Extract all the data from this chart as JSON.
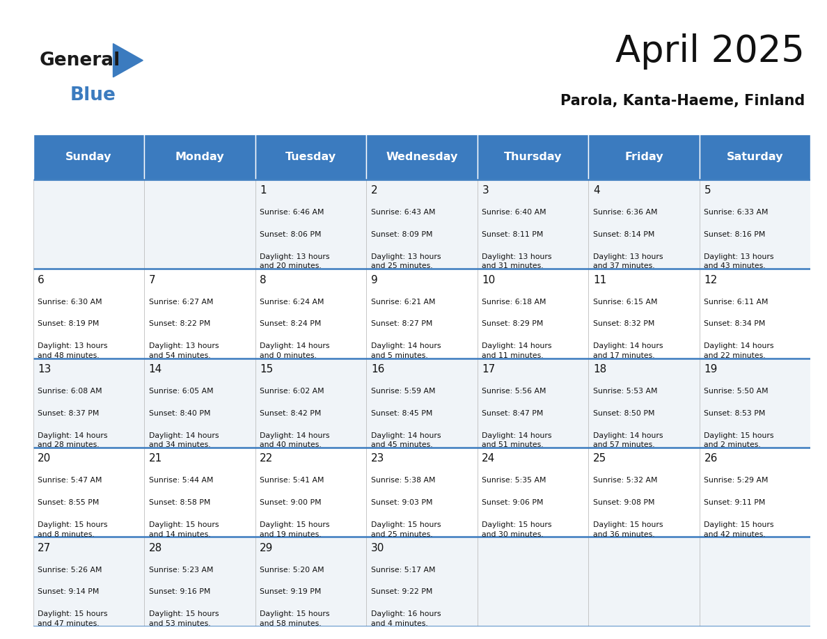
{
  "title": "April 2025",
  "subtitle": "Parola, Kanta-Haeme, Finland",
  "header_color": "#3b7bbf",
  "header_text_color": "#ffffff",
  "cell_bg_even": "#f0f4f8",
  "cell_bg_odd": "#ffffff",
  "day_headers": [
    "Sunday",
    "Monday",
    "Tuesday",
    "Wednesday",
    "Thursday",
    "Friday",
    "Saturday"
  ],
  "days": [
    {
      "day": "",
      "sunrise": "",
      "sunset": "",
      "daylight": ""
    },
    {
      "day": "",
      "sunrise": "",
      "sunset": "",
      "daylight": ""
    },
    {
      "day": "1",
      "sunrise": "Sunrise: 6:46 AM",
      "sunset": "Sunset: 8:06 PM",
      "daylight": "Daylight: 13 hours\nand 20 minutes."
    },
    {
      "day": "2",
      "sunrise": "Sunrise: 6:43 AM",
      "sunset": "Sunset: 8:09 PM",
      "daylight": "Daylight: 13 hours\nand 25 minutes."
    },
    {
      "day": "3",
      "sunrise": "Sunrise: 6:40 AM",
      "sunset": "Sunset: 8:11 PM",
      "daylight": "Daylight: 13 hours\nand 31 minutes."
    },
    {
      "day": "4",
      "sunrise": "Sunrise: 6:36 AM",
      "sunset": "Sunset: 8:14 PM",
      "daylight": "Daylight: 13 hours\nand 37 minutes."
    },
    {
      "day": "5",
      "sunrise": "Sunrise: 6:33 AM",
      "sunset": "Sunset: 8:16 PM",
      "daylight": "Daylight: 13 hours\nand 43 minutes."
    },
    {
      "day": "6",
      "sunrise": "Sunrise: 6:30 AM",
      "sunset": "Sunset: 8:19 PM",
      "daylight": "Daylight: 13 hours\nand 48 minutes."
    },
    {
      "day": "7",
      "sunrise": "Sunrise: 6:27 AM",
      "sunset": "Sunset: 8:22 PM",
      "daylight": "Daylight: 13 hours\nand 54 minutes."
    },
    {
      "day": "8",
      "sunrise": "Sunrise: 6:24 AM",
      "sunset": "Sunset: 8:24 PM",
      "daylight": "Daylight: 14 hours\nand 0 minutes."
    },
    {
      "day": "9",
      "sunrise": "Sunrise: 6:21 AM",
      "sunset": "Sunset: 8:27 PM",
      "daylight": "Daylight: 14 hours\nand 5 minutes."
    },
    {
      "day": "10",
      "sunrise": "Sunrise: 6:18 AM",
      "sunset": "Sunset: 8:29 PM",
      "daylight": "Daylight: 14 hours\nand 11 minutes."
    },
    {
      "day": "11",
      "sunrise": "Sunrise: 6:15 AM",
      "sunset": "Sunset: 8:32 PM",
      "daylight": "Daylight: 14 hours\nand 17 minutes."
    },
    {
      "day": "12",
      "sunrise": "Sunrise: 6:11 AM",
      "sunset": "Sunset: 8:34 PM",
      "daylight": "Daylight: 14 hours\nand 22 minutes."
    },
    {
      "day": "13",
      "sunrise": "Sunrise: 6:08 AM",
      "sunset": "Sunset: 8:37 PM",
      "daylight": "Daylight: 14 hours\nand 28 minutes."
    },
    {
      "day": "14",
      "sunrise": "Sunrise: 6:05 AM",
      "sunset": "Sunset: 8:40 PM",
      "daylight": "Daylight: 14 hours\nand 34 minutes."
    },
    {
      "day": "15",
      "sunrise": "Sunrise: 6:02 AM",
      "sunset": "Sunset: 8:42 PM",
      "daylight": "Daylight: 14 hours\nand 40 minutes."
    },
    {
      "day": "16",
      "sunrise": "Sunrise: 5:59 AM",
      "sunset": "Sunset: 8:45 PM",
      "daylight": "Daylight: 14 hours\nand 45 minutes."
    },
    {
      "day": "17",
      "sunrise": "Sunrise: 5:56 AM",
      "sunset": "Sunset: 8:47 PM",
      "daylight": "Daylight: 14 hours\nand 51 minutes."
    },
    {
      "day": "18",
      "sunrise": "Sunrise: 5:53 AM",
      "sunset": "Sunset: 8:50 PM",
      "daylight": "Daylight: 14 hours\nand 57 minutes."
    },
    {
      "day": "19",
      "sunrise": "Sunrise: 5:50 AM",
      "sunset": "Sunset: 8:53 PM",
      "daylight": "Daylight: 15 hours\nand 2 minutes."
    },
    {
      "day": "20",
      "sunrise": "Sunrise: 5:47 AM",
      "sunset": "Sunset: 8:55 PM",
      "daylight": "Daylight: 15 hours\nand 8 minutes."
    },
    {
      "day": "21",
      "sunrise": "Sunrise: 5:44 AM",
      "sunset": "Sunset: 8:58 PM",
      "daylight": "Daylight: 15 hours\nand 14 minutes."
    },
    {
      "day": "22",
      "sunrise": "Sunrise: 5:41 AM",
      "sunset": "Sunset: 9:00 PM",
      "daylight": "Daylight: 15 hours\nand 19 minutes."
    },
    {
      "day": "23",
      "sunrise": "Sunrise: 5:38 AM",
      "sunset": "Sunset: 9:03 PM",
      "daylight": "Daylight: 15 hours\nand 25 minutes."
    },
    {
      "day": "24",
      "sunrise": "Sunrise: 5:35 AM",
      "sunset": "Sunset: 9:06 PM",
      "daylight": "Daylight: 15 hours\nand 30 minutes."
    },
    {
      "day": "25",
      "sunrise": "Sunrise: 5:32 AM",
      "sunset": "Sunset: 9:08 PM",
      "daylight": "Daylight: 15 hours\nand 36 minutes."
    },
    {
      "day": "26",
      "sunrise": "Sunrise: 5:29 AM",
      "sunset": "Sunset: 9:11 PM",
      "daylight": "Daylight: 15 hours\nand 42 minutes."
    },
    {
      "day": "27",
      "sunrise": "Sunrise: 5:26 AM",
      "sunset": "Sunset: 9:14 PM",
      "daylight": "Daylight: 15 hours\nand 47 minutes."
    },
    {
      "day": "28",
      "sunrise": "Sunrise: 5:23 AM",
      "sunset": "Sunset: 9:16 PM",
      "daylight": "Daylight: 15 hours\nand 53 minutes."
    },
    {
      "day": "29",
      "sunrise": "Sunrise: 5:20 AM",
      "sunset": "Sunset: 9:19 PM",
      "daylight": "Daylight: 15 hours\nand 58 minutes."
    },
    {
      "day": "30",
      "sunrise": "Sunrise: 5:17 AM",
      "sunset": "Sunset: 9:22 PM",
      "daylight": "Daylight: 16 hours\nand 4 minutes."
    },
    {
      "day": "",
      "sunrise": "",
      "sunset": "",
      "daylight": ""
    },
    {
      "day": "",
      "sunrise": "",
      "sunset": "",
      "daylight": ""
    },
    {
      "day": "",
      "sunrise": "",
      "sunset": "",
      "daylight": ""
    },
    {
      "day": "",
      "sunrise": "",
      "sunset": "",
      "daylight": ""
    }
  ],
  "logo_color_general": "#1a1a1a",
  "logo_color_blue": "#3b7bbf",
  "logo_triangle_color": "#3b7bbf"
}
